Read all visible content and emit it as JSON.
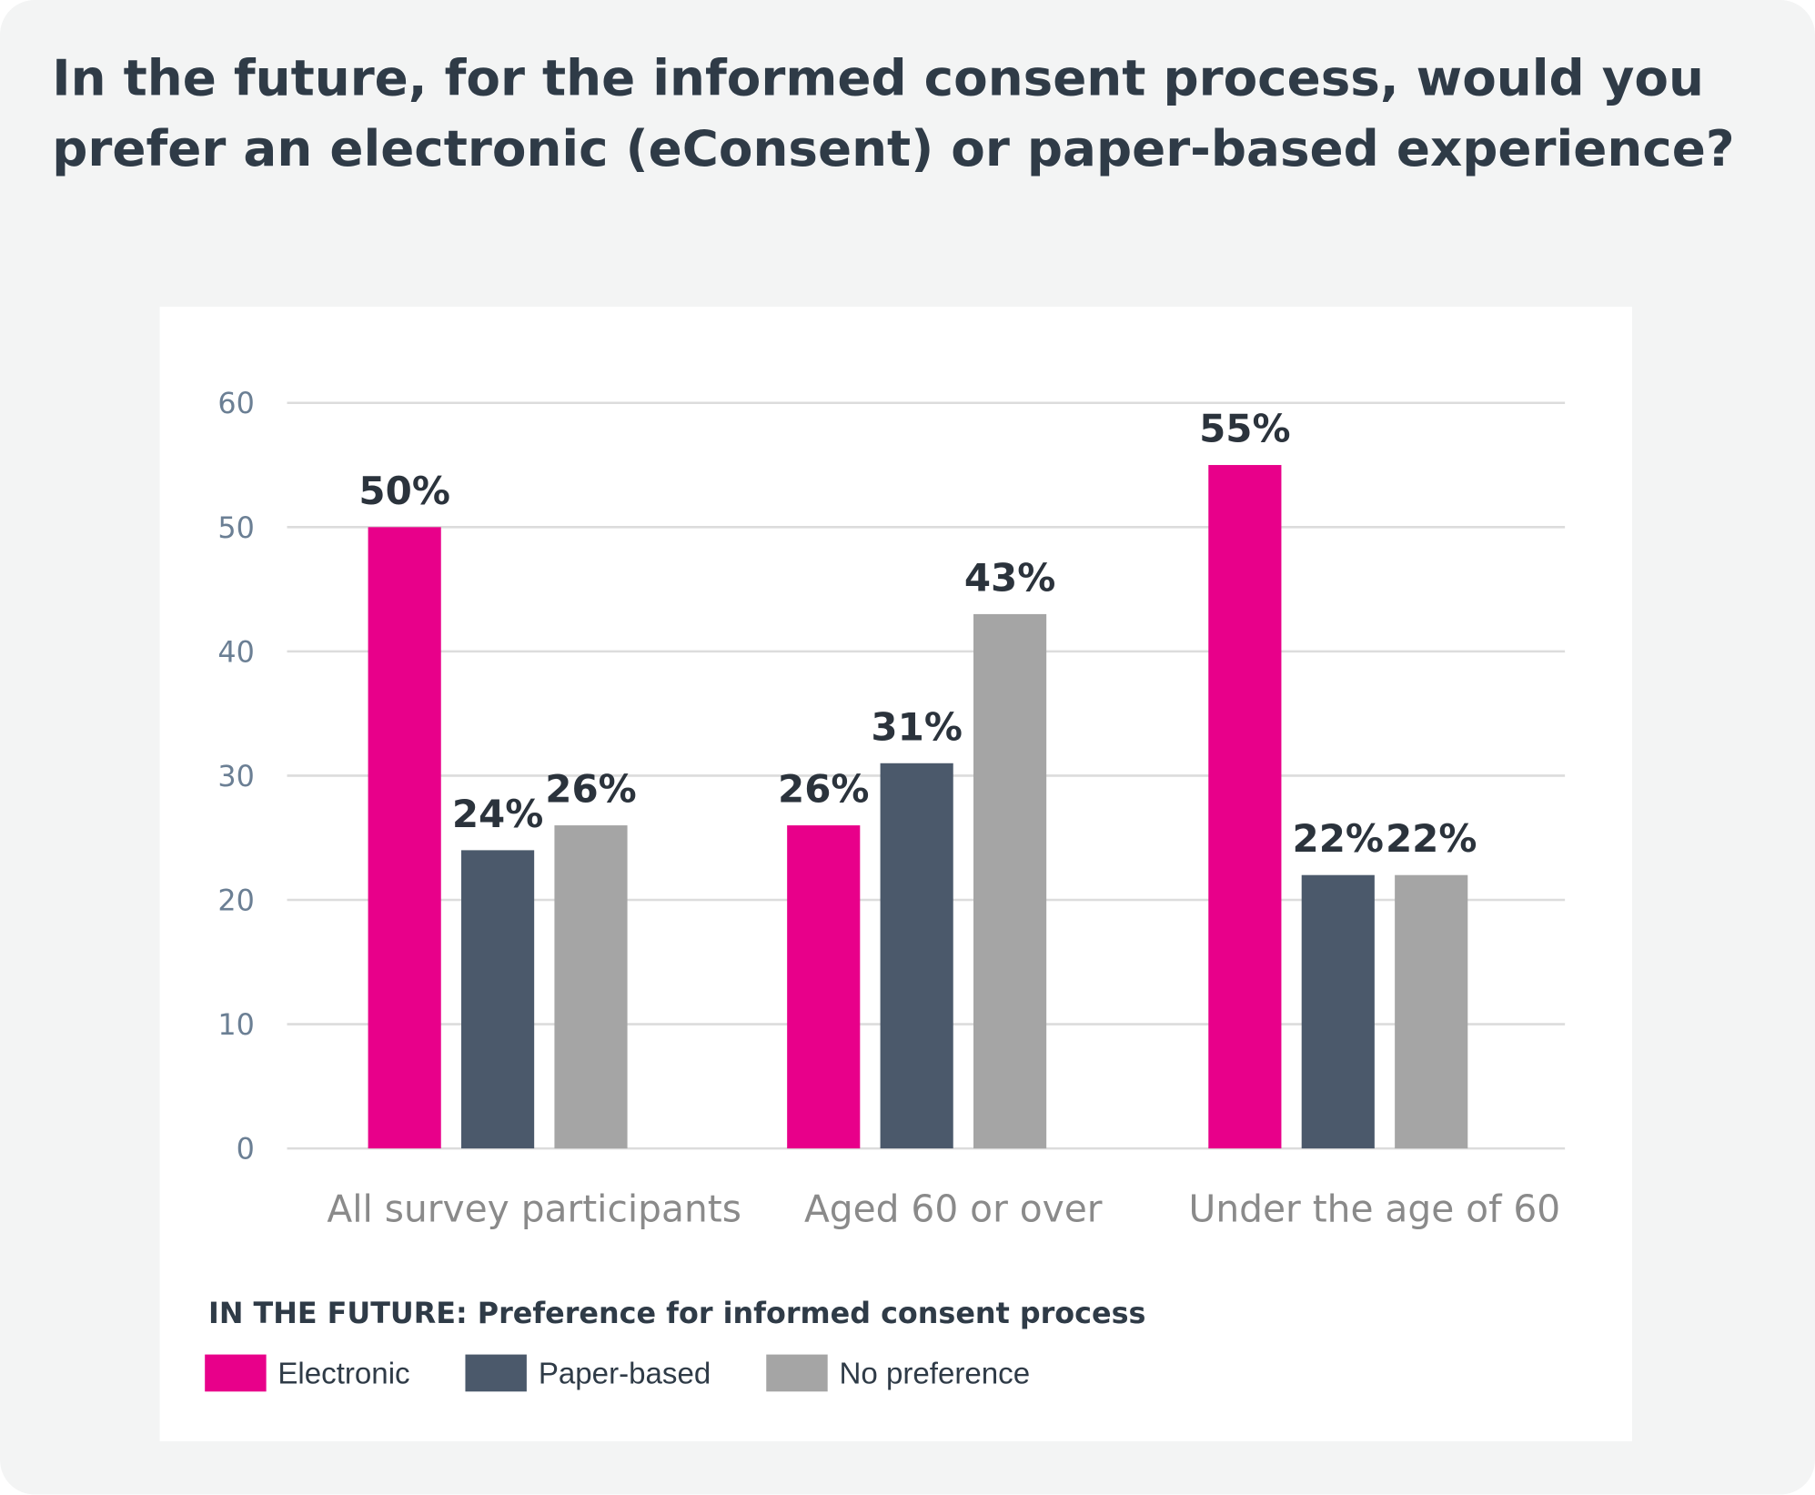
{
  "title": "In the future, for the informed consent process, would you prefer an electronic (eConsent) or paper-based experience?",
  "chart_data": {
    "type": "bar",
    "categories": [
      "All survey participants",
      "Aged 60 or over",
      "Under the age of 60"
    ],
    "series": [
      {
        "name": "Electronic",
        "color": "#e8008a",
        "values": [
          50,
          26,
          55
        ],
        "labels": [
          "50%",
          "26%",
          "55%"
        ]
      },
      {
        "name": "Paper-based",
        "color": "#4b596b",
        "values": [
          24,
          31,
          22
        ],
        "labels": [
          "24%",
          "31%",
          "22%"
        ]
      },
      {
        "name": "No preference",
        "color": "#a5a5a5",
        "values": [
          26,
          43,
          22
        ],
        "labels": [
          "26%",
          "43%",
          "22%"
        ]
      }
    ],
    "yticks": [
      "0",
      "10",
      "20",
      "30",
      "40",
      "50",
      "60"
    ],
    "ylim": [
      0,
      60
    ],
    "grid": true,
    "legend_title": "IN THE FUTURE: Preference for informed consent process",
    "legend_placement": "bottom-left"
  }
}
